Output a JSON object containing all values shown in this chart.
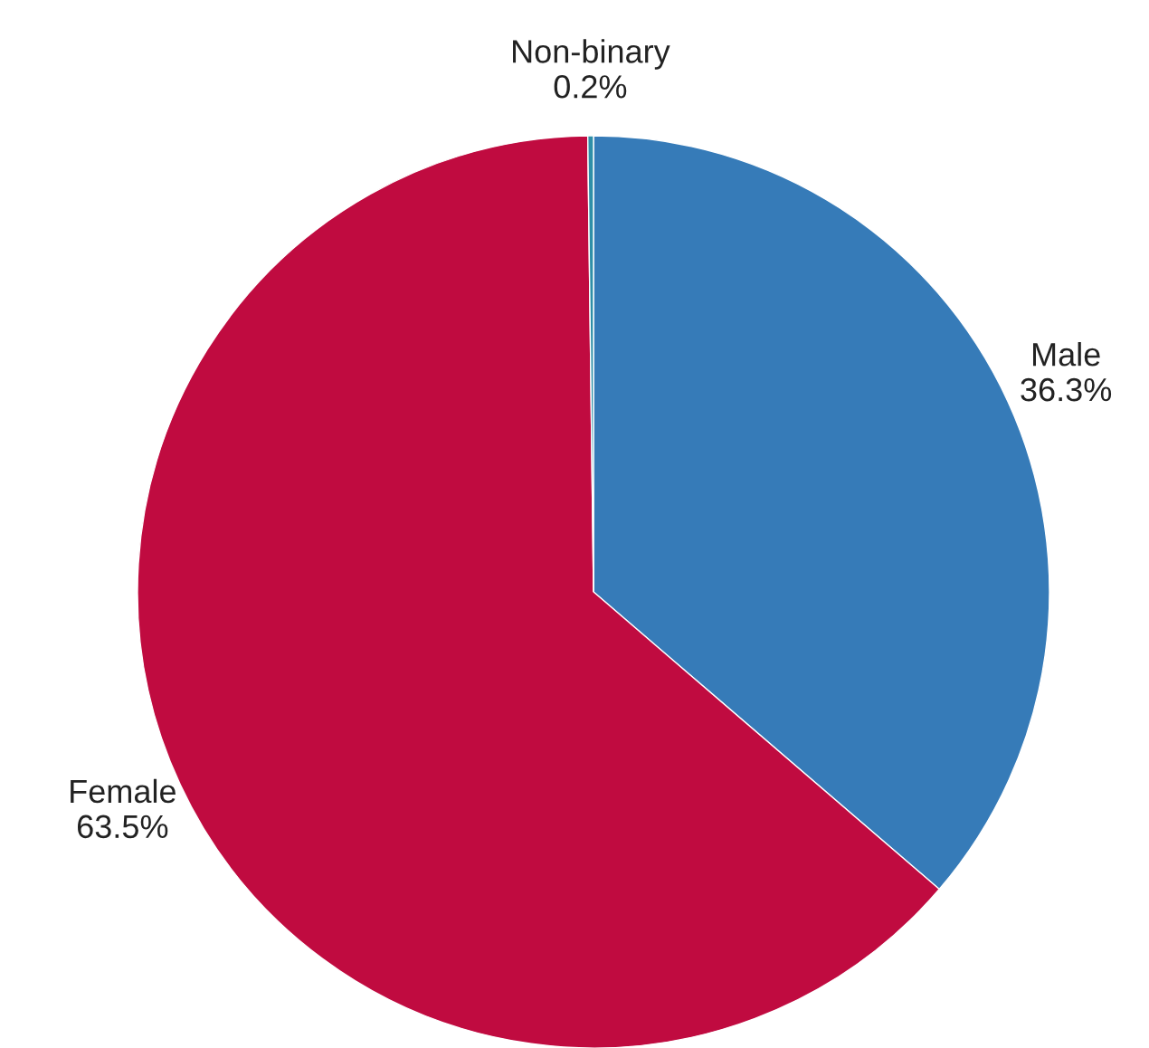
{
  "chart_data": {
    "type": "pie",
    "categories": [
      "Male",
      "Female",
      "Non-binary"
    ],
    "values": [
      36.3,
      63.5,
      0.2
    ],
    "value_labels": [
      "36.3%",
      "63.5%",
      "0.2%"
    ],
    "colors": [
      "#367bb8",
      "#c00b40",
      "#2f8fa8"
    ]
  }
}
